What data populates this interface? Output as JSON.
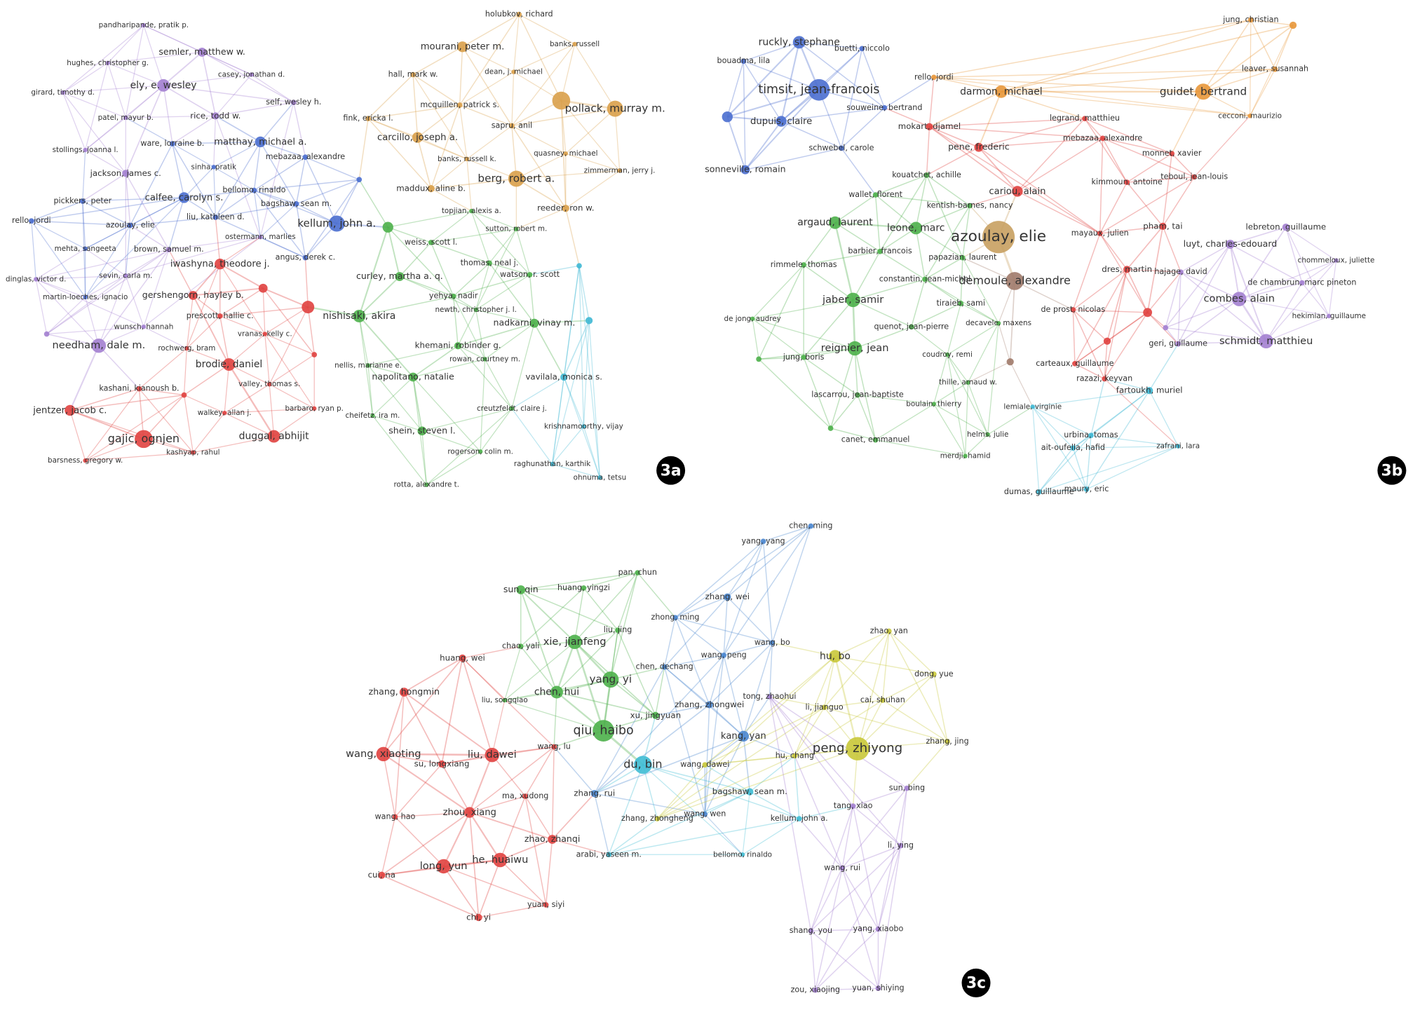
{
  "panels": [
    {
      "label": "3a",
      "clusters": [
        {
          "color": "#a37fd0",
          "nodes": [
            "pandharipande, pratik p.",
            "semler, matthew w.",
            "hughes, christopher g.",
            "casey, jonathan d.",
            "ely, e. wesley",
            "girard, timothy d.",
            "self, wesley h.",
            "patel, mayur b.",
            "rice, todd w.",
            "stollings, joanna l.",
            "jackson, james c.",
            "brown, samuel m.",
            "needham, dale m.",
            "dinglas, victor d.",
            "ostermann, marlies",
            "sevin, carla m.",
            "wunsch, hannah"
          ]
        },
        {
          "color": "#4a6ecf",
          "nodes": [
            "matthay, michael a.",
            "ware, lorraine b.",
            "mebazaa, alexandre",
            "sinha, pratik",
            "calfee, carolyn s.",
            "bellomo, rinaldo",
            "pickkers, peter",
            "bagshaw, sean m.",
            "rello, jordi",
            "liu, kathleen d.",
            "azoulay, elie",
            "kellum, john a.",
            "mehta, sangeeta",
            "angus, derek c.",
            "martin-loeches, ignacio"
          ]
        },
        {
          "color": "#e0413f",
          "nodes": [
            "iwashyna, theodore j.",
            "gershengorn, hayley b.",
            "prescott, hallie c.",
            "rochwerg, bram",
            "vranas, kelly c.",
            "brodie, daniel",
            "valley, thomas s.",
            "kashani, kianoush b.",
            "barbaro, ryan p.",
            "walkey, allan j.",
            "jentzer, jacob c.",
            "gajic, ognjen",
            "duggal, abhijit",
            "kashyap, rahul",
            "barsness, gregory w."
          ]
        },
        {
          "color": "#d9a04a",
          "nodes": [
            "holubkov, richard",
            "mourani, peter m.",
            "banks, russell",
            "hall, mark w.",
            "dean, j. michael",
            "pollack, murray m.",
            "mcquillen, patrick s.",
            "fink, ericka l.",
            "sapru, anil",
            "carcillo, joseph a.",
            "quasney, michael",
            "banks, russell k.",
            "zimmerman, jerry j.",
            "berg, robert a.",
            "maddux, aline b.",
            "reeder, ron w."
          ]
        },
        {
          "color": "#4cb04a",
          "nodes": [
            "topjian, alexis a.",
            "weiss, scott l.",
            "sutton, robert m.",
            "thomas, neal j.",
            "curley, martha a. q.",
            "watson, r. scott",
            "yehya, nadir",
            "newth, christopher j. l.",
            "nishisaki, akira",
            "nadkarni, vinay m.",
            "khemani, robinder g.",
            "rowan, courtney m.",
            "nellis, marianne e.",
            "napolitano, natalie",
            "cheifetz, ira m.",
            "creutzfeldt, claire j.",
            "shein, steven l.",
            "rogerson, colin m.",
            "rotta, alexandre t."
          ]
        },
        {
          "color": "#3fb8d4",
          "nodes": [
            "vavilala, monica s.",
            "krishnamoorthy, vijay",
            "raghunathan, karthik",
            "ohnuma, tetsu"
          ]
        }
      ]
    },
    {
      "label": "3b",
      "clusters": [
        {
          "color": "#4a6ecf",
          "nodes": [
            "ruckly, stephane",
            "buetti, niccolo",
            "bouadma, lila",
            "timsit, jean-francois",
            "souweine, bertrand",
            "dupuis, claire",
            "schwebel, carole",
            "sonneville, romain"
          ]
        },
        {
          "color": "#e8973a",
          "nodes": [
            "jung, christian",
            "rello, jordi",
            "darmon, michael",
            "leaver, susannah",
            "guidet, bertrand",
            "cecconi, maurizio"
          ]
        },
        {
          "color": "#c8a060",
          "nodes": [
            "azoulay, elie"
          ]
        },
        {
          "color": "#e0413f",
          "nodes": [
            "legrand, matthieu",
            "mokart, djamel",
            "mebazaa, alexandre",
            "pene, frederic",
            "monnet, xavier",
            "teboul, jean-louis",
            "kimmoun, antoine",
            "cariou, alain",
            "mayaux, julien",
            "pham, tai",
            "dres, martin",
            "de prost, nicolas",
            "razazi, keyvan",
            "carteaux, guillaume"
          ]
        },
        {
          "color": "#4cb04a",
          "nodes": [
            "kouatchet, achille",
            "wallet, florent",
            "kentish-barnes, nancy",
            "argaud, laurent",
            "leone, marc",
            "barbier, francois",
            "rimmele, thomas",
            "papazian, laurent",
            "constantin, jean-michel",
            "jaber, samir",
            "tiraieb, sami",
            "de jong, audrey",
            "quenot, jean-pierre",
            "decavele, maxens",
            "reignier, jean",
            "coudroy, remi",
            "jung, boris",
            "thille, arnaud w.",
            "lascarrou, jean-baptiste",
            "boulain, thierry",
            "helms, julie",
            "canet, emmanuel",
            "merdji, hamid"
          ]
        },
        {
          "color": "#a07a6a",
          "nodes": [
            "demoule, alexandre"
          ]
        },
        {
          "color": "#a37fd0",
          "nodes": [
            "lebreton, guillaume",
            "luyt, charles-edouard",
            "chommeloux, juliette",
            "hajage, david",
            "de chambrun, marc pineton",
            "combes, alain",
            "hekimian, guillaume",
            "schmidt, matthieu",
            "geri, guillaume"
          ]
        },
        {
          "color": "#3fb8d4",
          "nodes": [
            "fartoukh, muriel",
            "lemiale, virginie",
            "urbina, tomas",
            "ait-oufella, hafid",
            "zafrani, lara",
            "dumas, guillaume",
            "maury, eric"
          ]
        }
      ]
    },
    {
      "label": "3c",
      "clusters": [
        {
          "color": "#4cb04a",
          "nodes": [
            "pan, chun",
            "sun, qin",
            "huang, yingzi",
            "liu, jing",
            "chao, yali",
            "xie, jianfeng",
            "yang, yi",
            "chen, hui",
            "liu, songqiao",
            "xu, jingyuan",
            "qiu, haibo"
          ]
        },
        {
          "color": "#4a86cf",
          "nodes": [
            "chen, ming",
            "yang, yang",
            "zhang, wei",
            "zhong, ming",
            "wang, bo",
            "wang, peng",
            "chen, dechang",
            "zhang, zhongwei",
            "kang, yan",
            "zhang, rui",
            "wang, wen"
          ]
        },
        {
          "color": "#3fbcd4",
          "nodes": [
            "du, bin",
            "bagshaw, sean m.",
            "arabi, yaseen m.",
            "bellomo, rinaldo",
            "kellum, john a."
          ]
        },
        {
          "color": "#e0413f",
          "nodes": [
            "huang, wei",
            "zhang, hongmin",
            "wang, xiaoting",
            "liu, dawei",
            "wang, lu",
            "su, longxiang",
            "ma, xudong",
            "zhou, xiang",
            "wang, hao",
            "zhao, zhanqi",
            "long, yun",
            "he, huaiwu",
            "cui, na",
            "yuan, siyi",
            "chi, yi"
          ]
        },
        {
          "color": "#c9c83a",
          "nodes": [
            "zhao, yan",
            "hu, bo",
            "dong, yue",
            "cai, shuhan",
            "li, jianguo",
            "peng, zhiyong",
            "zhang, jing",
            "hu, chang",
            "wang, dawei",
            "zhang, zhongheng"
          ]
        },
        {
          "color": "#a37fd0",
          "nodes": [
            "tong, zhaohui",
            "sun, bing",
            "tang, xiao",
            "li, ying",
            "wang, rui",
            "shang, you",
            "yang, xiaobo",
            "zou, xiaojing",
            "yuan, shiying"
          ]
        }
      ]
    }
  ]
}
